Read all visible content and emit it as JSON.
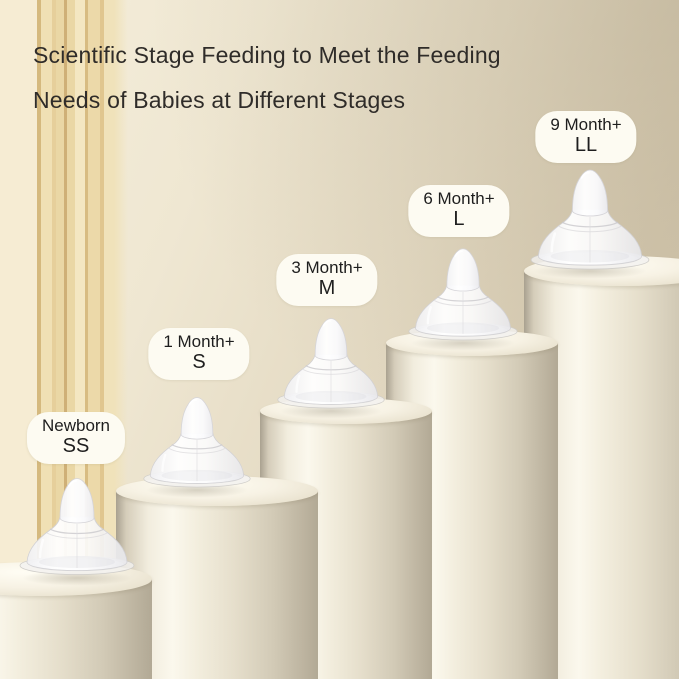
{
  "title": {
    "line1": "Scientific Stage Feeding to Meet the Feeding",
    "line2": "Needs of Babies at Different Stages"
  },
  "stages": [
    {
      "age": "Newborn",
      "size": "SS"
    },
    {
      "age": "1 Month+",
      "size": "S"
    },
    {
      "age": "3 Month+",
      "size": "M"
    },
    {
      "age": "6 Month+",
      "size": "L"
    },
    {
      "age": "9 Month+",
      "size": "LL"
    }
  ],
  "colors": {
    "title_text": "#2f2c29",
    "wall_light": "#f5eedb",
    "wall_dark": "#ccc0a6",
    "stripe_gold": "#d5b97e",
    "stripe_cream": "#f0e0b4",
    "pedestal_highlight": "#fbf8ed",
    "pedestal_shade": "#b2a995",
    "label_pill_background": "#fdfbf2",
    "label_text": "#1e1e1e",
    "nipple_white": "#ffffff"
  }
}
